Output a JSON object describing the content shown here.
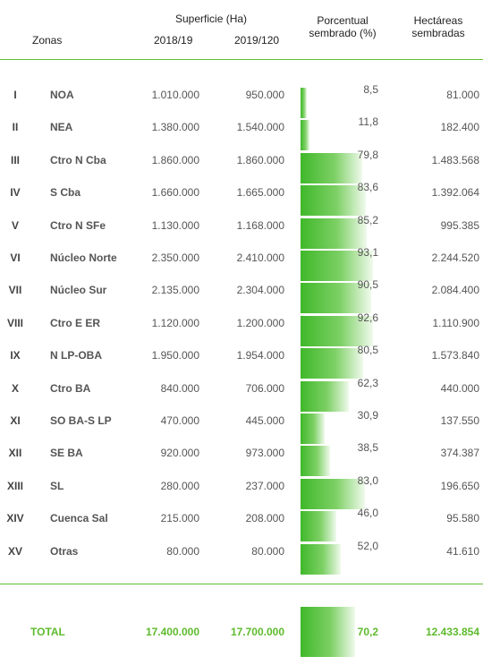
{
  "header": {
    "zonas": "Zonas",
    "superficie": "Superficie (Ha)",
    "col_2018": "2018/19",
    "col_2019": "2019/120",
    "porcentual_l1": "Porcentual",
    "porcentual_l2": "sembrado (%)",
    "hect_l1": "Hectáreas",
    "hect_l2": "sembradas"
  },
  "rows": [
    {
      "roman": "I",
      "zona": "NOA",
      "s1819": "1.010.000",
      "s1920": "950.000",
      "pct": "8,5",
      "pct_value": 8.5,
      "hect": "81.000"
    },
    {
      "roman": "II",
      "zona": "NEA",
      "s1819": "1.380.000",
      "s1920": "1.540.000",
      "pct": "11,8",
      "pct_value": 11.8,
      "hect": "182.400"
    },
    {
      "roman": "III",
      "zona": "Ctro N Cba",
      "s1819": "1.860.000",
      "s1920": "1.860.000",
      "pct": "79,8",
      "pct_value": 79.8,
      "hect": "1.483.568"
    },
    {
      "roman": "IV",
      "zona": "S Cba",
      "s1819": "1.660.000",
      "s1920": "1.665.000",
      "pct": "83,6",
      "pct_value": 83.6,
      "hect": "1.392.064"
    },
    {
      "roman": "V",
      "zona": "Ctro N SFe",
      "s1819": "1.130.000",
      "s1920": "1.168.000",
      "pct": "85,2",
      "pct_value": 85.2,
      "hect": "995.385"
    },
    {
      "roman": "VI",
      "zona": "Núcleo Norte",
      "s1819": "2.350.000",
      "s1920": "2.410.000",
      "pct": "93,1",
      "pct_value": 93.1,
      "hect": "2.244.520"
    },
    {
      "roman": "VII",
      "zona": "Núcleo Sur",
      "s1819": "2.135.000",
      "s1920": "2.304.000",
      "pct": "90,5",
      "pct_value": 90.5,
      "hect": "2.084.400"
    },
    {
      "roman": "VIII",
      "zona": "Ctro E ER",
      "s1819": "1.120.000",
      "s1920": "1.200.000",
      "pct": "92,6",
      "pct_value": 92.6,
      "hect": "1.110.900"
    },
    {
      "roman": "IX",
      "zona": "N LP-OBA",
      "s1819": "1.950.000",
      "s1920": "1.954.000",
      "pct": "80,5",
      "pct_value": 80.5,
      "hect": "1.573.840"
    },
    {
      "roman": "X",
      "zona": "Ctro BA",
      "s1819": "840.000",
      "s1920": "706.000",
      "pct": "62,3",
      "pct_value": 62.3,
      "hect": "440.000"
    },
    {
      "roman": "XI",
      "zona": "SO BA-S LP",
      "s1819": "470.000",
      "s1920": "445.000",
      "pct": "30,9",
      "pct_value": 30.9,
      "hect": "137.550"
    },
    {
      "roman": "XII",
      "zona": "SE BA",
      "s1819": "920.000",
      "s1920": "973.000",
      "pct": "38,5",
      "pct_value": 38.5,
      "hect": "374.387"
    },
    {
      "roman": "XIII",
      "zona": "SL",
      "s1819": "280.000",
      "s1920": "237.000",
      "pct": "83,0",
      "pct_value": 83.0,
      "hect": "196.650"
    },
    {
      "roman": "XIV",
      "zona": "Cuenca Sal",
      "s1819": "215.000",
      "s1920": "208.000",
      "pct": "46,0",
      "pct_value": 46.0,
      "hect": "95.580"
    },
    {
      "roman": "XV",
      "zona": "Otras",
      "s1819": "80.000",
      "s1920": "80.000",
      "pct": "52,0",
      "pct_value": 52.0,
      "hect": "41.610"
    }
  ],
  "total": {
    "label": "TOTAL",
    "s1819": "17.400.000",
    "s1920": "17.700.000",
    "pct": "70,2",
    "pct_value": 70.2,
    "hect": "12.433.854"
  },
  "colors": {
    "accent": "#5dbb2c",
    "bar": "#3fb82a"
  }
}
